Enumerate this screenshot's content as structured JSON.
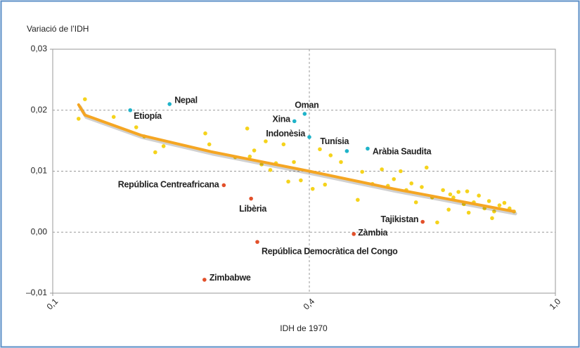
{
  "chart_data": {
    "type": "scatter",
    "y_axis_label": "Variació de l’IDH",
    "x_axis_label": "IDH de 1970",
    "xscale": "log",
    "grid": true,
    "xlim": [
      0.1,
      1.0
    ],
    "xticks": [
      {
        "value": 0.1,
        "label": "0,1"
      },
      {
        "value": 0.4,
        "label": "0,4"
      },
      {
        "value": 1.0,
        "label": "1,0"
      }
    ],
    "ylim": [
      -0.01,
      0.03
    ],
    "yticks": [
      {
        "value": -0.01,
        "label": "–0,01"
      },
      {
        "value": 0.0,
        "label": "0,00"
      },
      {
        "value": 0.01,
        "label": "0,01"
      },
      {
        "value": 0.02,
        "label": "0,02"
      },
      {
        "value": 0.03,
        "label": "0,03"
      }
    ],
    "series": [
      {
        "color": "#f5d31c",
        "x": [
          0.115,
          0.119,
          0.139,
          0.157,
          0.164,
          0.174,
          0.182,
          0.228,
          0.233,
          0.268,
          0.286,
          0.29,
          0.297,
          0.309,
          0.316,
          0.324,
          0.334,
          0.348,
          0.357,
          0.368,
          0.382,
          0.405,
          0.416,
          0.424,
          0.433,
          0.45,
          0.479,
          0.487,
          0.506,
          0.524,
          0.536,
          0.548,
          0.562,
          0.574,
          0.585,
          0.595,
          0.608,
          0.619,
          0.632,
          0.644,
          0.658,
          0.672,
          0.684,
          0.697,
          0.711,
          0.724,
          0.738,
          0.752,
          0.768,
          0.781,
          0.796,
          0.812,
          0.827,
          0.843,
          0.857,
          0.72,
          0.676,
          0.79
        ],
        "values": [
          0.0186,
          0.0218,
          0.0189,
          0.0172,
          0.0157,
          0.0131,
          0.0141,
          0.0162,
          0.0144,
          0.0123,
          0.017,
          0.0124,
          0.0134,
          0.0111,
          0.0149,
          0.0102,
          0.0113,
          0.0144,
          0.0083,
          0.0115,
          0.0085,
          0.0071,
          0.0136,
          0.0078,
          0.0126,
          0.0115,
          0.0053,
          0.0099,
          0.0079,
          0.0103,
          0.0076,
          0.0087,
          0.01,
          0.0069,
          0.008,
          0.0049,
          0.0074,
          0.0106,
          0.0057,
          0.0016,
          0.0069,
          0.0037,
          0.0057,
          0.0066,
          0.0046,
          0.0032,
          0.0049,
          0.006,
          0.0039,
          0.0051,
          0.0034,
          0.0044,
          0.0048,
          0.0039,
          0.0034,
          0.0067,
          0.0062,
          0.0023
        ]
      },
      {
        "color": "#1fb3c9",
        "labels": [
          "Etiopía",
          "Nepal",
          "Oman",
          "Xina",
          "Indonèsia",
          "Tunísia",
          "Aràbia Saudita"
        ],
        "x": [
          0.152,
          0.188,
          0.39,
          0.369,
          0.4,
          0.46,
          0.497
        ],
        "values": [
          0.02,
          0.021,
          0.0194,
          0.0182,
          0.0156,
          0.0133,
          0.0137
        ]
      },
      {
        "color": "#e2502a",
        "labels": [
          "República Centreafricana",
          "Libèria",
          "Tajikistan",
          "Zàmbia",
          "República Democràtica del Congo",
          "Zimbabwe"
        ],
        "x": [
          0.252,
          0.292,
          0.61,
          0.472,
          0.302,
          0.227
        ],
        "values": [
          0.0077,
          0.0055,
          0.0017,
          -0.0003,
          -0.0016,
          -0.0078
        ]
      }
    ],
    "trend": {
      "color": "#f5a623",
      "x": [
        0.115,
        0.119,
        0.161,
        0.235,
        0.4,
        0.548,
        0.857
      ],
      "values": [
        0.0209,
        0.0192,
        0.0159,
        0.0132,
        0.01,
        0.0071,
        0.0034
      ]
    }
  }
}
